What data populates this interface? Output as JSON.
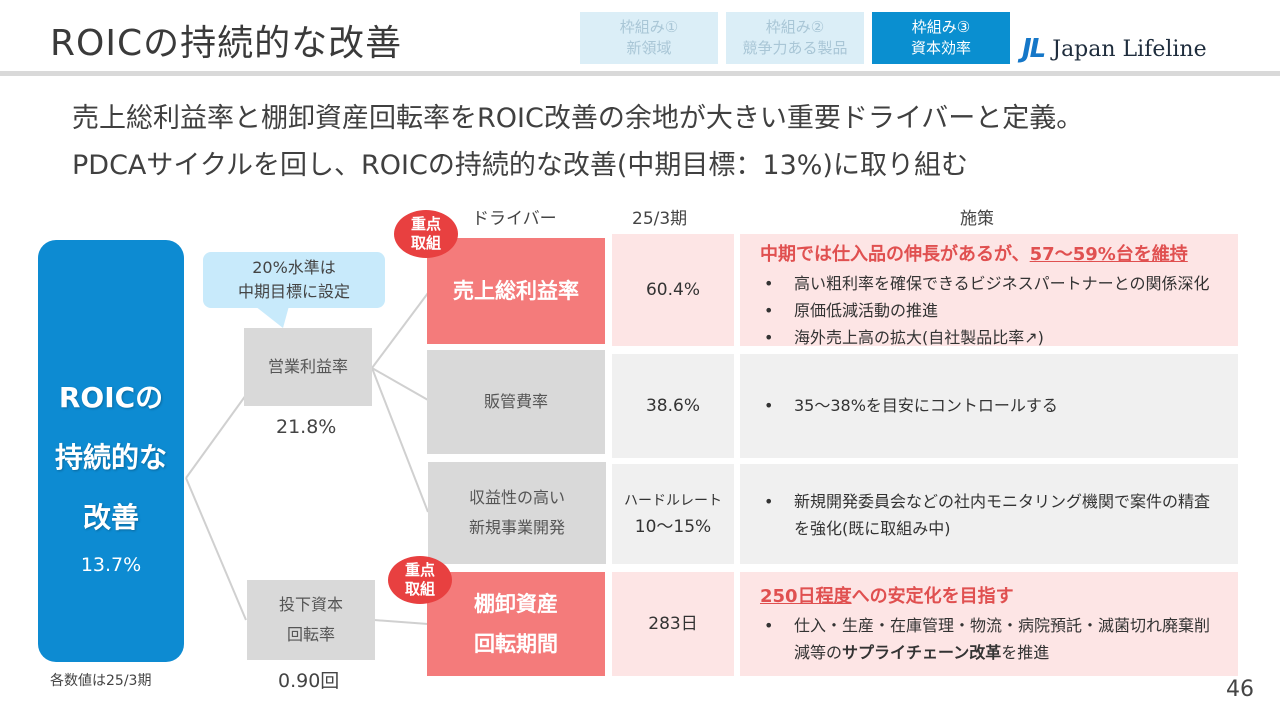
{
  "header": {
    "title": "ROICの持続的な改善",
    "tabs": [
      {
        "line1": "枠組み①",
        "line2": "新領域"
      },
      {
        "line1": "枠組み②",
        "line2": "競争力ある製品"
      },
      {
        "line1": "枠組み③",
        "line2": "資本効率"
      }
    ],
    "logo_mark": "JL",
    "logo_name": "Japan Lifeline"
  },
  "lead": {
    "line1": "売上総利益率と棚卸資産回転率をROIC改善の余地が大きい重要ドライバーと定義。",
    "line2": "PDCAサイクルを回し、ROICの持続的な改善(中期目標：13%)に取り組む"
  },
  "columns": {
    "driver": "ドライバー",
    "period": "25/3期",
    "measures": "施策"
  },
  "roic": {
    "line1": "ROICの",
    "line2": "持続的な",
    "line3": "改善",
    "value": "13.7%"
  },
  "bubble": {
    "line1": "20%水準は",
    "line2": "中期目標に設定"
  },
  "operating_margin": {
    "label": "営業利益率",
    "value": "21.8%"
  },
  "invested_capital": {
    "line1": "投下資本",
    "line2": "回転率",
    "value": "0.90回"
  },
  "badges": {
    "line1": "重点",
    "line2": "取組"
  },
  "rows": [
    {
      "driver": "売上総利益率",
      "value": "60.4%",
      "headline_pre": "中期では仕入品の伸長があるが、",
      "headline_em": "57～59%台を維持",
      "bullets": [
        "高い粗利率を確保できるビジネスパートナーとの関係深化",
        "原価低減活動の推進",
        "海外売上高の拡大(自社製品比率↗)"
      ]
    },
    {
      "driver": "販管費率",
      "value": "38.6%",
      "bullets": [
        "35～38%を目安にコントロールする"
      ]
    },
    {
      "driver_line1": "収益性の高い",
      "driver_line2": "新規事業開発",
      "value_label": "ハードルレート",
      "value": "10～15%",
      "bullets": [
        "新規開発委員会などの社内モニタリング機関で案件の精査を強化(既に取組み中)"
      ]
    },
    {
      "driver_line1": "棚卸資産",
      "driver_line2": "回転期間",
      "value": "283日",
      "headline_em": "250日程度",
      "headline_post": "への安定化を目指す",
      "bullet_pre": "仕入・生産・在庫管理・物流・病院預託・滅菌切れ廃棄削減等の",
      "bullet_em": "サプライチェーン改革",
      "bullet_post": "を推進"
    }
  ],
  "footnote": "各数値は25/3期",
  "page_number": "46",
  "colors": {
    "accent_blue": "#0d8bd2",
    "focus_pink": "#f47b7b",
    "badge_red": "#e84040",
    "light_pink": "#fde5e5"
  }
}
